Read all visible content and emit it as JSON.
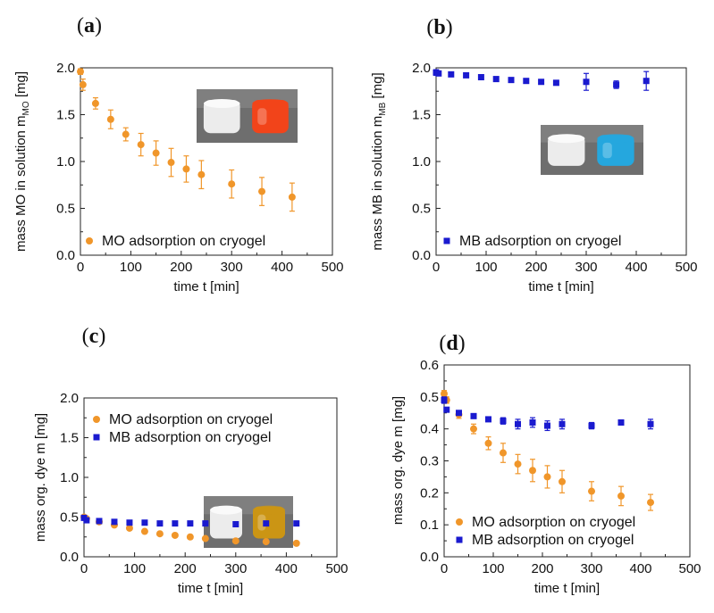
{
  "colors": {
    "mo": "#F0962A",
    "mb": "#1A1ACF"
  },
  "chart_data": [
    {
      "panel": "(a)",
      "panel_letter": "a",
      "type": "scatter",
      "xlabel": "time t [min]",
      "ylabel_main": "mass MO in solution m",
      "ylabel_sub": "MO",
      "ylabel_unit": " [mg]",
      "xlim": [
        0,
        500
      ],
      "ylim": [
        0,
        2.0
      ],
      "xticks": [
        "0",
        "100",
        "200",
        "300",
        "400",
        "500"
      ],
      "yticks": [
        "0.0",
        "0.5",
        "1.0",
        "1.5",
        "2.0"
      ],
      "legend_position": "bottom-right",
      "series": [
        {
          "name": "MO adsorption on cryogel",
          "color": "#F0962A",
          "marker": "circle",
          "x": [
            0,
            5,
            30,
            60,
            90,
            120,
            150,
            180,
            210,
            240,
            300,
            360,
            420
          ],
          "y": [
            1.96,
            1.82,
            1.62,
            1.45,
            1.29,
            1.18,
            1.09,
            0.99,
            0.92,
            0.86,
            0.76,
            0.68,
            0.62
          ],
          "err": [
            0.03,
            0.06,
            0.06,
            0.1,
            0.07,
            0.12,
            0.13,
            0.15,
            0.14,
            0.15,
            0.15,
            0.15,
            0.15
          ]
        }
      ],
      "photo": "two cryogel discs: white and orange"
    },
    {
      "panel": "(b)",
      "panel_letter": "b",
      "type": "scatter",
      "xlabel": "time t [min]",
      "ylabel_main": "mass MB in solution m",
      "ylabel_sub": "MB",
      "ylabel_unit": " [mg]",
      "xlim": [
        0,
        500
      ],
      "ylim": [
        0,
        2.0
      ],
      "xticks": [
        "0",
        "100",
        "200",
        "300",
        "400",
        "500"
      ],
      "yticks": [
        "0.0",
        "0.5",
        "1.0",
        "1.5",
        "2.0"
      ],
      "legend_position": "bottom-right",
      "series": [
        {
          "name": "MB adsorption on cryogel",
          "color": "#1A1ACF",
          "marker": "square",
          "x": [
            0,
            5,
            30,
            60,
            90,
            120,
            150,
            180,
            210,
            240,
            300,
            360,
            420
          ],
          "y": [
            1.95,
            1.94,
            1.93,
            1.92,
            1.9,
            1.88,
            1.87,
            1.86,
            1.85,
            1.84,
            1.85,
            1.82,
            1.86
          ],
          "err": [
            0.03,
            0.02,
            0.01,
            0.01,
            0.01,
            0.01,
            0.01,
            0.01,
            0.01,
            0.01,
            0.09,
            0.04,
            0.1
          ]
        }
      ],
      "photo": "two cryogel discs: white and blue"
    },
    {
      "panel": "(c)",
      "panel_letter": "c",
      "type": "scatter",
      "xlabel": "time t [min]",
      "ylabel_main": "mass org. dye m [mg]",
      "ylabel_sub": "",
      "ylabel_unit": "",
      "xlim": [
        0,
        500
      ],
      "ylim": [
        0,
        2.0
      ],
      "xticks": [
        "0",
        "100",
        "200",
        "300",
        "400",
        "500"
      ],
      "yticks": [
        "0.0",
        "0.5",
        "1.0",
        "1.5",
        "2.0"
      ],
      "legend_position": "top-right",
      "series": [
        {
          "name": "MO adsorption on cryogel",
          "color": "#F0962A",
          "marker": "circle",
          "x": [
            0,
            5,
            30,
            60,
            90,
            120,
            150,
            180,
            210,
            240,
            300,
            360,
            420
          ],
          "y": [
            0.5,
            0.48,
            0.44,
            0.4,
            0.36,
            0.32,
            0.29,
            0.27,
            0.25,
            0.23,
            0.2,
            0.19,
            0.17
          ],
          "err": [
            0.01,
            0.01,
            0.01,
            0.01,
            0.01,
            0.01,
            0.01,
            0.01,
            0.01,
            0.01,
            0.01,
            0.01,
            0.01
          ]
        },
        {
          "name": "MB adsorption on cryogel",
          "color": "#1A1ACF",
          "marker": "square",
          "x": [
            0,
            5,
            30,
            60,
            90,
            120,
            150,
            180,
            210,
            240,
            300,
            360,
            420
          ],
          "y": [
            0.49,
            0.46,
            0.45,
            0.44,
            0.43,
            0.43,
            0.42,
            0.42,
            0.42,
            0.42,
            0.41,
            0.42,
            0.42
          ],
          "err": [
            0.01,
            0.01,
            0.01,
            0.01,
            0.01,
            0.01,
            0.01,
            0.01,
            0.01,
            0.01,
            0.01,
            0.01,
            0.01
          ]
        }
      ],
      "photo": "two cryogel discs: white and yellow-gold"
    },
    {
      "panel": "(d)",
      "panel_letter": "d",
      "type": "scatter",
      "xlabel": "time t [min]",
      "ylabel_main": "mass org. dye m [mg]",
      "ylabel_sub": "",
      "ylabel_unit": "",
      "xlim": [
        0,
        500
      ],
      "ylim": [
        0,
        0.6
      ],
      "xticks": [
        "0",
        "100",
        "200",
        "300",
        "400",
        "500"
      ],
      "yticks": [
        "0.0",
        "0.1",
        "0.2",
        "0.3",
        "0.4",
        "0.5",
        "0.6"
      ],
      "legend_position": "bottom-right",
      "series": [
        {
          "name": "MO adsorption on cryogel",
          "color": "#F0962A",
          "marker": "circle",
          "x": [
            0,
            5,
            30,
            60,
            90,
            120,
            150,
            180,
            210,
            240,
            300,
            360,
            420
          ],
          "y": [
            0.51,
            0.49,
            0.445,
            0.4,
            0.355,
            0.325,
            0.29,
            0.27,
            0.25,
            0.235,
            0.205,
            0.19,
            0.17
          ],
          "err": [
            0.01,
            0.01,
            0.012,
            0.015,
            0.02,
            0.03,
            0.03,
            0.035,
            0.035,
            0.035,
            0.03,
            0.03,
            0.025
          ]
        },
        {
          "name": "MB adsorption on cryogel",
          "color": "#1A1ACF",
          "marker": "square",
          "x": [
            0,
            5,
            30,
            60,
            90,
            120,
            150,
            180,
            210,
            240,
            300,
            360,
            420
          ],
          "y": [
            0.49,
            0.46,
            0.45,
            0.44,
            0.43,
            0.425,
            0.415,
            0.42,
            0.41,
            0.415,
            0.41,
            0.42,
            0.415
          ],
          "err": [
            0.01,
            0.005,
            0.005,
            0.005,
            0.005,
            0.01,
            0.015,
            0.015,
            0.015,
            0.015,
            0.01,
            0.005,
            0.015
          ]
        }
      ]
    }
  ]
}
